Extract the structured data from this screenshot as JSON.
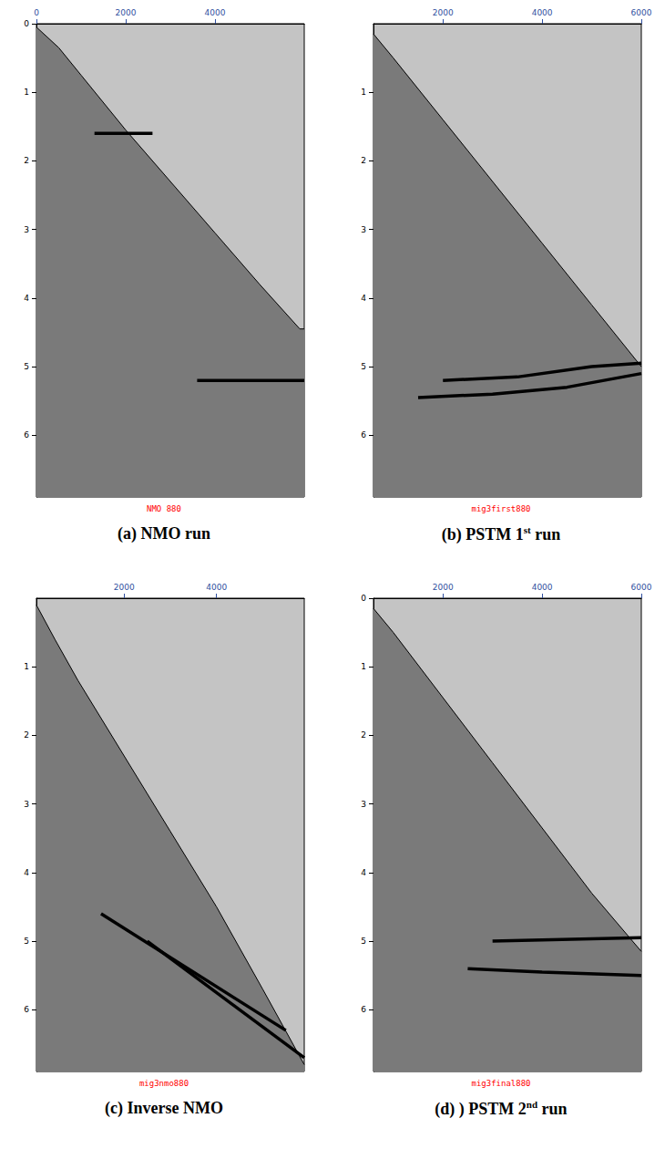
{
  "chart_data": [
    {
      "type": "line",
      "title": "(a) NMO run",
      "subtitle": "NMO 880",
      "xlim": [
        0,
        6000
      ],
      "xticks": [
        0,
        2000,
        4000
      ],
      "ylim": [
        0,
        6.9
      ],
      "yticks": [
        0,
        1,
        2,
        3,
        4,
        5,
        6
      ],
      "grid": false,
      "series": [
        {
          "type": "area",
          "color": "#7a7a7a",
          "x": [
            0,
            500,
            1000,
            2000,
            3000,
            4000,
            5000,
            5900,
            6000
          ],
          "values": [
            0.05,
            0.35,
            0.75,
            1.55,
            2.3,
            3.05,
            3.8,
            4.45,
            4.45
          ]
        },
        {
          "type": "line",
          "color": "#000000",
          "x": [
            1300,
            2600
          ],
          "values": [
            1.6,
            1.6
          ]
        },
        {
          "type": "line",
          "color": "#000000",
          "x": [
            3600,
            6000
          ],
          "values": [
            5.2,
            5.2
          ]
        }
      ]
    },
    {
      "type": "line",
      "title": "(b) PSTM 1st run",
      "subtitle": "mig3first880",
      "xlim": [
        600,
        6000
      ],
      "xticks": [
        2000,
        4000,
        6000
      ],
      "ylim": [
        0,
        6.9
      ],
      "yticks": [
        1,
        2,
        3,
        4,
        5,
        6
      ],
      "grid": false,
      "series": [
        {
          "type": "area",
          "color": "#7a7a7a",
          "x": [
            600,
            1000,
            2000,
            3000,
            4000,
            5000,
            6000
          ],
          "values": [
            0.15,
            0.5,
            1.4,
            2.3,
            3.2,
            4.1,
            5.0
          ]
        },
        {
          "type": "line",
          "color": "#000000",
          "x": [
            1500,
            3000,
            4500,
            6000
          ],
          "values": [
            5.45,
            5.4,
            5.3,
            5.1
          ]
        },
        {
          "type": "line",
          "color": "#000000",
          "x": [
            2000,
            3500,
            5000,
            6000
          ],
          "values": [
            5.2,
            5.15,
            5.0,
            4.95
          ]
        }
      ]
    },
    {
      "type": "line",
      "title": "(c) Inverse NMO",
      "subtitle": "mig3nmo880",
      "xlim": [
        100,
        5900
      ],
      "xticks": [
        2000,
        4000
      ],
      "ylim": [
        0,
        6.9
      ],
      "yticks": [
        1,
        2,
        3,
        4,
        5,
        6
      ],
      "grid": false,
      "series": [
        {
          "type": "area",
          "color": "#7a7a7a",
          "x": [
            100,
            500,
            1000,
            2000,
            3000,
            4000,
            5000,
            5900
          ],
          "values": [
            0.1,
            0.6,
            1.2,
            2.3,
            3.4,
            4.5,
            5.7,
            6.8
          ]
        },
        {
          "type": "line",
          "color": "#000000",
          "x": [
            1500,
            5500
          ],
          "values": [
            4.6,
            6.3
          ]
        },
        {
          "type": "line",
          "color": "#000000",
          "x": [
            2500,
            5900
          ],
          "values": [
            5.0,
            6.7
          ]
        }
      ]
    },
    {
      "type": "line",
      "title": "(d) ) PSTM 2nd run",
      "subtitle": "mig3final880",
      "xlim": [
        600,
        6000
      ],
      "xticks": [
        2000,
        4000,
        6000
      ],
      "ylim": [
        0,
        6.9
      ],
      "yticks": [
        0,
        1,
        2,
        3,
        4,
        5,
        6
      ],
      "grid": false,
      "series": [
        {
          "type": "area",
          "color": "#7a7a7a",
          "x": [
            600,
            1000,
            2000,
            3000,
            4000,
            5000,
            6000
          ],
          "values": [
            0.15,
            0.5,
            1.45,
            2.4,
            3.35,
            4.3,
            5.15
          ]
        },
        {
          "type": "line",
          "color": "#000000",
          "x": [
            2500,
            4000,
            6000
          ],
          "values": [
            5.4,
            5.45,
            5.5
          ]
        },
        {
          "type": "line",
          "color": "#000000",
          "x": [
            3000,
            6000
          ],
          "values": [
            5.0,
            4.95
          ]
        }
      ]
    }
  ]
}
